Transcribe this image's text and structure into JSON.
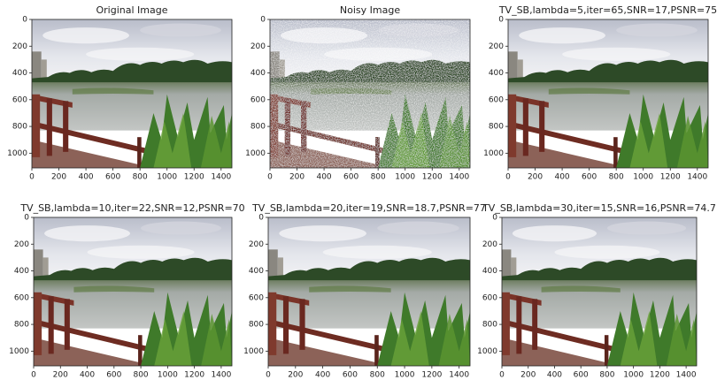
{
  "chart_data": [
    {
      "type": "image",
      "title": "Original Image",
      "xlim": [
        0,
        1480
      ],
      "ylim": [
        1110,
        0
      ],
      "xticks": [
        0,
        200,
        400,
        600,
        800,
        1000,
        1200,
        1400
      ],
      "yticks": [
        0,
        200,
        400,
        600,
        800,
        1000
      ]
    },
    {
      "type": "image",
      "title": "Noisy Image",
      "xlim": [
        0,
        1480
      ],
      "ylim": [
        1110,
        0
      ],
      "xticks": [
        0,
        200,
        400,
        600,
        800,
        1000,
        1200,
        1400
      ],
      "yticks": [
        0,
        200,
        400,
        600,
        800,
        1000
      ]
    },
    {
      "type": "image",
      "title": "TV_SB,lambda=5,iter=65,SNR=17,PSNR=75",
      "xlim": [
        0,
        1480
      ],
      "ylim": [
        1110,
        0
      ],
      "xticks": [
        0,
        200,
        400,
        600,
        800,
        1000,
        1200,
        1400
      ],
      "yticks": [
        0,
        200,
        400,
        600,
        800,
        1000
      ]
    },
    {
      "type": "image",
      "title": "TV_SB,lambda=10,iter=22,SNR=12,PSNR=70",
      "xlim": [
        0,
        1480
      ],
      "ylim": [
        1110,
        0
      ],
      "xticks": [
        0,
        200,
        400,
        600,
        800,
        1000,
        1200,
        1400
      ],
      "yticks": [
        0,
        200,
        400,
        600,
        800,
        1000
      ]
    },
    {
      "type": "image",
      "title": "TV_SB,lambda=20,iter=19,SNR=18.7,PSNR=77",
      "xlim": [
        0,
        1480
      ],
      "ylim": [
        1110,
        0
      ],
      "xticks": [
        0,
        200,
        400,
        600,
        800,
        1000,
        1200,
        1400
      ],
      "yticks": [
        0,
        200,
        400,
        600,
        800,
        1000
      ]
    },
    {
      "type": "image",
      "title": "TV_SB,lambda=30,iter=15,SNR=16,PSNR=74.7",
      "xlim": [
        0,
        1480
      ],
      "ylim": [
        1110,
        0
      ],
      "xticks": [
        0,
        200,
        400,
        600,
        800,
        1000,
        1200,
        1400
      ],
      "yticks": [
        0,
        200,
        400,
        600,
        800,
        1000
      ]
    }
  ]
}
